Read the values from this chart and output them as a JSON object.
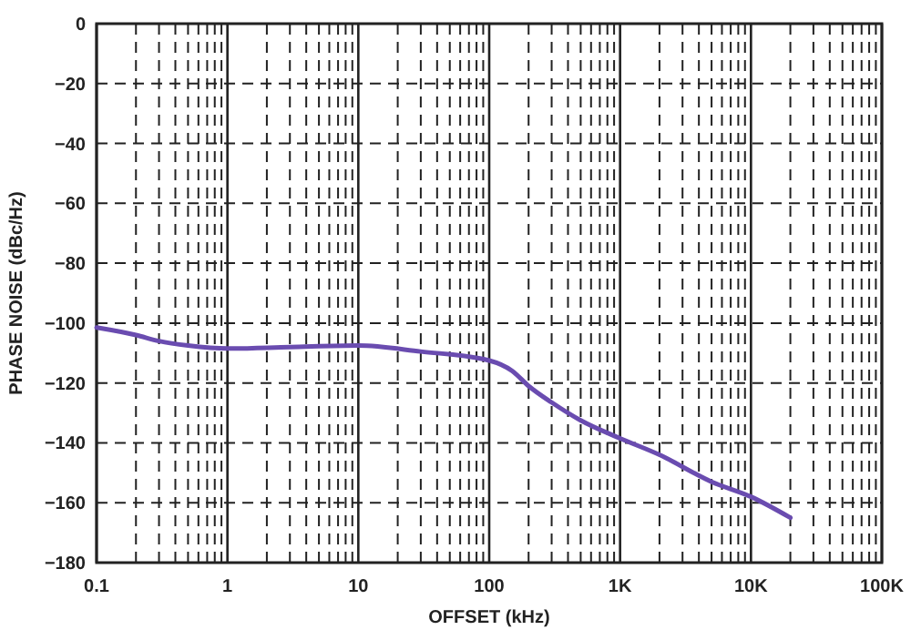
{
  "chart_data": {
    "type": "line",
    "xlabel": "OFFSET (kHz)",
    "ylabel": "PHASE NOISE (dBc/Hz)",
    "x": [
      0.1,
      0.2,
      0.3,
      0.5,
      1,
      3,
      10,
      30,
      100,
      150,
      200,
      300,
      500,
      1000,
      2000,
      5000,
      10000,
      20000
    ],
    "series": [
      {
        "color": "#6a4cb0",
        "values": [
          -101.5,
          -104,
          -106,
          -107.5,
          -108.5,
          -108,
          -107.5,
          -109.5,
          -112.5,
          -116,
          -121,
          -126.5,
          -132.5,
          -138.5,
          -144,
          -153,
          -158,
          -165
        ]
      }
    ],
    "log": "x",
    "xlim": [
      0.1,
      100000
    ],
    "xticks": [
      0.1,
      1,
      10,
      100,
      {
        "value": 1000,
        "label": "1K"
      },
      {
        "value": 10000,
        "label": "10K"
      },
      {
        "value": 100000,
        "label": "100K"
      }
    ],
    "ylim": [
      -180,
      0
    ],
    "yticks": [
      0,
      -20,
      -40,
      -60,
      -80,
      -100,
      -120,
      -140,
      -160,
      -180
    ],
    "grid": true,
    "marker": "none",
    "line_style": "solid"
  }
}
